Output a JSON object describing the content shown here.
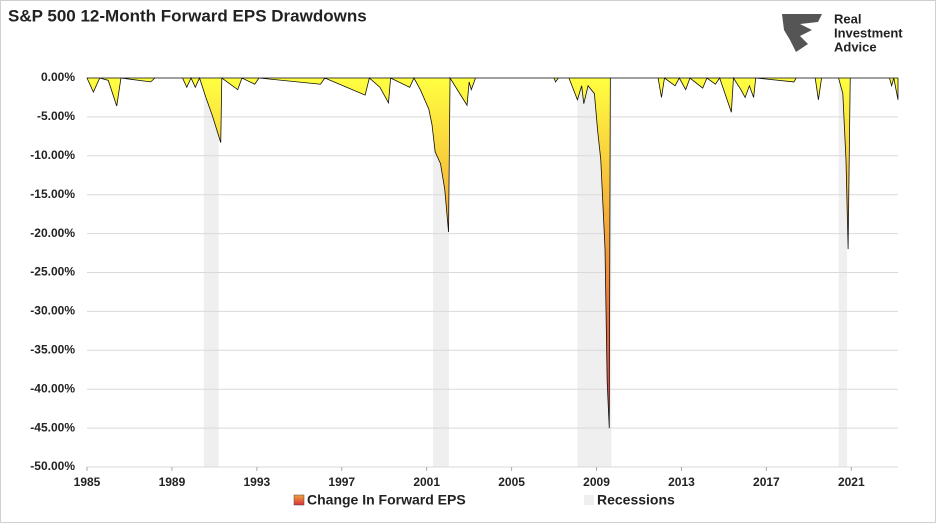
{
  "chart_data": {
    "type": "area",
    "title": "S&P 500 12-Month Forward EPS Drawdowns",
    "logo": [
      "Real",
      "Investment",
      "Advice"
    ],
    "xlim": [
      1985,
      2023.2
    ],
    "xticks": [
      1985,
      1989,
      1993,
      1997,
      2001,
      2005,
      2009,
      2013,
      2017,
      2021
    ],
    "ylim": [
      -50,
      0
    ],
    "yticks": [
      {
        "value": 0,
        "label": "0.00%"
      },
      {
        "value": -5,
        "label": "-5.00%"
      },
      {
        "value": -10,
        "label": "-10.00%"
      },
      {
        "value": -15,
        "label": "-15.00%"
      },
      {
        "value": -20,
        "label": "-20.00%"
      },
      {
        "value": -25,
        "label": "-25.00%"
      },
      {
        "value": -30,
        "label": "-30.00%"
      },
      {
        "value": -35,
        "label": "-35.00%"
      },
      {
        "value": -40,
        "label": "-40.00%"
      },
      {
        "value": -45,
        "label": "-45.00%"
      },
      {
        "value": -50,
        "label": "-50.00%"
      }
    ],
    "grid": true,
    "legend": "bottom",
    "recessions": {
      "name": "Recessions",
      "color": "#efefef",
      "spans": [
        [
          1990.5,
          1991.2
        ],
        [
          2001.3,
          2002.05
        ],
        [
          2008.1,
          2009.7
        ],
        [
          2020.4,
          2020.8
        ]
      ]
    },
    "series": [
      {
        "name": "Change In Forward EPS",
        "colors": [
          "#ffff40",
          "#f3a23a",
          "#d8303e"
        ],
        "x": [
          1985,
          1985.3,
          1985.6,
          1986,
          1986.4,
          1986.6,
          1988,
          1988.2,
          1989.5,
          1989.7,
          1989.9,
          1990.1,
          1990.3,
          1990.6,
          1990.9,
          1991.3,
          1991.35,
          1992.1,
          1992.3,
          1992.9,
          1993.1,
          1996,
          1996.2,
          1998.1,
          1998.3,
          1998.8,
          1999.2,
          1999.3,
          2000.2,
          2000.4,
          2000.7,
          2001.1,
          2001.25,
          2001.4,
          2001.65,
          2001.85,
          2002.03,
          2002.1,
          2002.9,
          2003,
          2003.1,
          2003.3,
          2007,
          2007.07,
          2007.2,
          2007.7,
          2008.1,
          2008.3,
          2008.4,
          2008.6,
          2008.9,
          2009.05,
          2009.2,
          2009.4,
          2009.5,
          2009.6,
          2009.65,
          2011.9,
          2012.06,
          2012.2,
          2012.7,
          2012.9,
          2013.2,
          2013.4,
          2014,
          2014.2,
          2014.6,
          2014.8,
          2015.35,
          2015.45,
          2015.8,
          2016,
          2016.2,
          2016.4,
          2016.5,
          2018.3,
          2018.4,
          2019.3,
          2019.45,
          2019.6,
          2020.4,
          2020.6,
          2020.75,
          2020.85,
          2020.95,
          2022.8,
          2022.9,
          2023,
          2023.2
        ],
        "values": [
          0,
          -1.8,
          0,
          -0.3,
          -3.6,
          0,
          -0.5,
          0,
          0,
          -1.2,
          0,
          -1.2,
          0,
          -2.5,
          -4.8,
          -8.3,
          0,
          -1.5,
          0,
          -0.8,
          0,
          -0.8,
          0,
          -2.2,
          0,
          -1.2,
          -3.2,
          0,
          -1.2,
          0,
          -1.5,
          -4,
          -6,
          -9.5,
          -11,
          -14.3,
          -19.8,
          0,
          -3.5,
          -0.5,
          -1.5,
          0,
          0,
          -0.5,
          0,
          0,
          -2.8,
          -1,
          -3.3,
          -1,
          -2,
          -6.7,
          -10.5,
          -22,
          -39,
          -45,
          0,
          0,
          -2.5,
          0,
          -1,
          0,
          -1.5,
          0,
          -1.3,
          0,
          -0.8,
          0,
          -4.4,
          0,
          -1.5,
          -2.5,
          -1,
          -2.5,
          0,
          -0.5,
          0,
          0,
          -2.8,
          0,
          0,
          -2,
          -10.5,
          -22,
          0,
          0,
          -1,
          0,
          -2.8
        ]
      }
    ]
  }
}
